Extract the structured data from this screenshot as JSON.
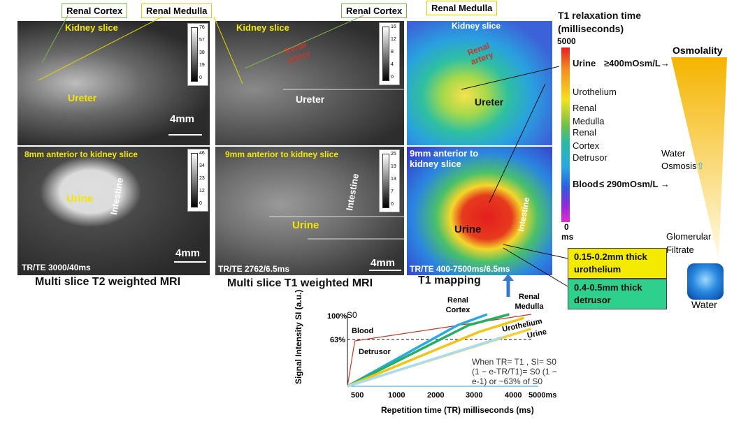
{
  "callouts": {
    "renal_cortex_1": "Renal Cortex",
    "renal_medulla_1": "Renal Medulla",
    "renal_cortex_2": "Renal Cortex",
    "renal_medulla_2": "Renal Medulla"
  },
  "t2": {
    "kidney_slice": "Kidney slice",
    "ureter": "Ureter",
    "scale": "4mm",
    "anterior": "8mm anterior to kidney slice",
    "urine": "Urine",
    "intestine": "Intestine",
    "scale2": "4mm",
    "params": "TR/TE 3000/40ms",
    "caption": "Multi slice T2 weighted MRI",
    "ticks_top": [
      "76",
      "57",
      "38",
      "19",
      "0"
    ],
    "ticks_bottom": [
      "46",
      "34",
      "23",
      "12",
      "0"
    ]
  },
  "t1": {
    "kidney_slice": "Kidney slice",
    "renal_artery": "Renal artery",
    "ureter": "Ureter",
    "anterior": "9mm anterior to kidney slice",
    "intestine": "Intestine",
    "urine": "Urine",
    "scale": "4mm",
    "params": "TR/TE 2762/6.5ms",
    "caption": "Multi slice T1 weighted MRI",
    "ticks_top": [
      "16",
      "12",
      "8",
      "4",
      "0"
    ],
    "ticks_bottom": [
      "25",
      "19",
      "13",
      "7",
      "0"
    ]
  },
  "map": {
    "kidney_slice": "Kidney slice",
    "renal_artery": "Renal artery",
    "ureter": "Ureter",
    "anterior": "9mm anterior to kidney slice",
    "intestine": "Intestine",
    "urine": "Urine",
    "params": "TR/TE 400-7500ms/6.5ms",
    "caption": "T1 mapping"
  },
  "colorbar": {
    "title": "T1 relaxation time (milliseconds)",
    "max": "5000",
    "min": "0",
    "min_unit": "ms"
  },
  "legend": {
    "urine": "Urine",
    "urine_osm": "≥400mOsm/L→",
    "urothelium": "Urothelium",
    "renal": "Renal",
    "medulla": "Medulla",
    "renal2": "Renal",
    "cortex": "Cortex",
    "detrusor": "Detrusor",
    "blood": "Blood",
    "blood_osm": "≤ 290mOsm/L  →"
  },
  "osmo": {
    "title": "Osmolality",
    "water": "Water",
    "osmosis": "Osmosis",
    "glomerular": "Glomerular",
    "filtrate": "Filtrate",
    "water_label": "Water"
  },
  "tags": {
    "urothelium": "0.15-0.2mm thick urothelium",
    "detrusor": "0.4-0.5mm thick detrusor"
  },
  "chart_data": {
    "type": "line",
    "xlabel": "Repetition time (TR) milliseconds (ms)",
    "ylabel": "Signal Intensity SI (a.u.)",
    "xlim": [
      0,
      5000
    ],
    "x_ticks": [
      "500",
      "1000",
      "2000",
      "3000",
      "4000",
      "5000ms"
    ],
    "y_ticks": [
      "100%",
      "63%"
    ],
    "s0": "S0",
    "series": [
      {
        "name": "Blood",
        "color": "#c0392b",
        "x": [
          0,
          200,
          5000
        ],
        "y": [
          0,
          0.63,
          1.0
        ]
      },
      {
        "name": "Renal Cortex",
        "color": "#29a9e1",
        "x": [
          0,
          3000,
          3800
        ],
        "y": [
          0,
          0.85,
          1.0
        ]
      },
      {
        "name": "Renal Medulla",
        "color": "#27ae60",
        "x": [
          0,
          3300,
          4400
        ],
        "y": [
          0,
          0.85,
          1.0
        ]
      },
      {
        "name": "Urothelium",
        "color": "#f0c419",
        "x": [
          0,
          3600,
          4800
        ],
        "y": [
          0,
          0.76,
          0.95
        ]
      },
      {
        "name": "Urine",
        "color": "#f4d03f",
        "x": [
          0,
          5000
        ],
        "y": [
          0,
          0.8
        ]
      },
      {
        "name": "Detrusor",
        "color": "#a9dcf0",
        "x": [
          0,
          4200
        ],
        "y": [
          0,
          0.68
        ]
      }
    ],
    "annotation": "When TR= T1 , SI= S0 (1 − e-TR/T1)= S0 (1 − e-1) or ~63% of S0"
  }
}
